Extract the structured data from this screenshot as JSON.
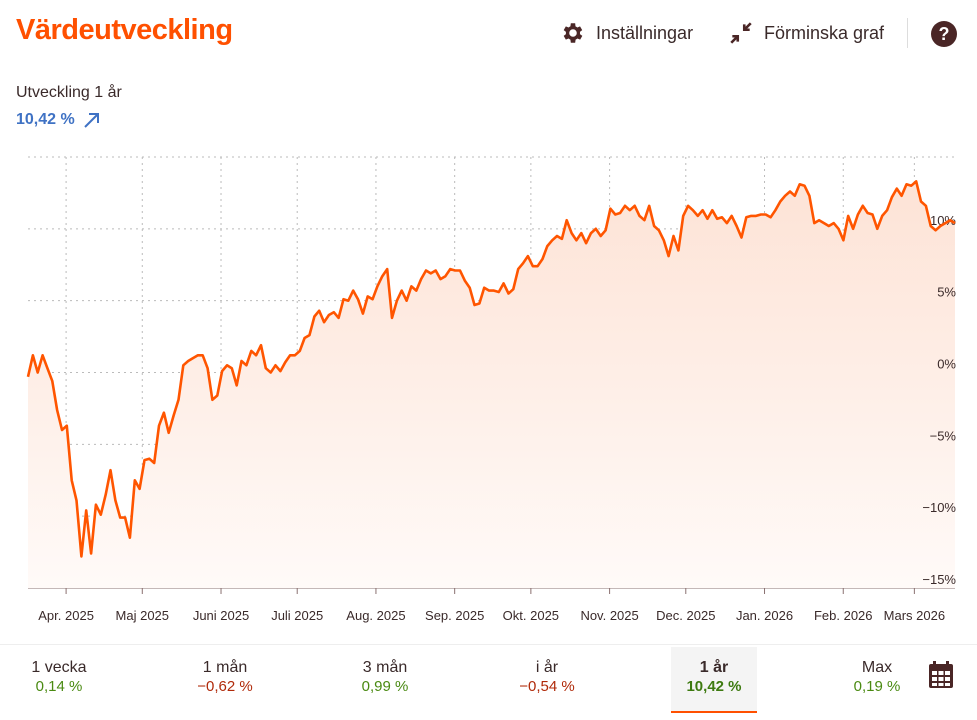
{
  "header": {
    "title": "Värdeutveckling",
    "settings_label": "Inställningar",
    "minimize_label": "Förminska graf",
    "help_label": "?"
  },
  "summary": {
    "label": "Utveckling 1 år",
    "value": "10,42 %",
    "trend_icon": "arrow-up-right-icon",
    "value_color": "#3f72c4"
  },
  "periods": [
    {
      "label": "1 vecka",
      "value": "0,14 %",
      "sign": "pos"
    },
    {
      "label": "1 mån",
      "value": "−0,62 %",
      "sign": "neg"
    },
    {
      "label": "3 mån",
      "value": "0,99 %",
      "sign": "pos"
    },
    {
      "label": "i år",
      "value": "−0,54 %",
      "sign": "neg"
    },
    {
      "label": "1 år",
      "value": "10,42 %",
      "sign": "pos",
      "active": true
    },
    {
      "label": "Max",
      "value": "0,19 %",
      "sign": "pos"
    }
  ],
  "colors": {
    "accent": "#ff5000",
    "line": "#ff5500",
    "positive": "#4a8a12",
    "negative": "#b02a0a"
  },
  "chart_data": {
    "type": "area",
    "x_range": [
      "2025-03-17",
      "2026-03-17"
    ],
    "ylim": [
      -15,
      15
    ],
    "grid": true,
    "y_ticks": [
      {
        "value": 10,
        "label": "10%"
      },
      {
        "value": 5,
        "label": "5%"
      },
      {
        "value": 0,
        "label": "0%"
      },
      {
        "value": -5,
        "label": "−5%"
      },
      {
        "value": -10,
        "label": "−10%"
      },
      {
        "value": -15,
        "label": "−15%"
      }
    ],
    "x_ticks": [
      {
        "date": "2025-04-01",
        "label": "Apr. 2025"
      },
      {
        "date": "2025-05-01",
        "label": "Maj 2025"
      },
      {
        "date": "2025-06-01",
        "label": "Juni 2025"
      },
      {
        "date": "2025-07-01",
        "label": "Juli 2025"
      },
      {
        "date": "2025-08-01",
        "label": "Aug. 2025"
      },
      {
        "date": "2025-09-01",
        "label": "Sep. 2025"
      },
      {
        "date": "2025-10-01",
        "label": "Okt. 2025"
      },
      {
        "date": "2025-11-01",
        "label": "Nov. 2025"
      },
      {
        "date": "2025-12-01",
        "label": "Dec. 2025"
      },
      {
        "date": "2026-01-01",
        "label": "Jan. 2026"
      },
      {
        "date": "2026-02-01",
        "label": "Feb. 2026"
      },
      {
        "date": "2026-03-01",
        "label": "Mars 2026"
      }
    ],
    "values": [
      -0.3,
      1.2,
      0,
      1.2,
      0.3,
      -0.6,
      -2.6,
      -4.0,
      -3.7,
      -7.5,
      -8.9,
      -12.8,
      -9.6,
      -12.6,
      -9.2,
      -9.9,
      -8.5,
      -6.8,
      -8.9,
      -10.1,
      -10.1,
      -11.5,
      -7.5,
      -8.1,
      -6.1,
      -6.0,
      -6.3,
      -3.7,
      -2.8,
      -4.2,
      -3.0,
      -1.9,
      0.5,
      0.8,
      1.0,
      1.2,
      1.2,
      0.3,
      -1.9,
      -1.6,
      0.1,
      0.5,
      0.3,
      -0.9,
      0.8,
      0.5,
      1.5,
      1.2,
      1.9,
      0.3,
      0,
      0.5,
      0.1,
      0.7,
      1.2,
      1.2,
      1.5,
      2.4,
      2.6,
      3.9,
      4.3,
      3.5,
      4.0,
      4.2,
      3.8,
      5.1,
      5.0,
      5.7,
      5.1,
      4.1,
      5.3,
      5.1,
      6.0,
      6.7,
      7.2,
      3.8,
      5.0,
      5.7,
      5.0,
      6.0,
      5.7,
      6.5,
      7.1,
      6.9,
      7.1,
      6.5,
      6.7,
      7.2,
      7.1,
      7.1,
      6.4,
      5.9,
      4.7,
      4.8,
      5.9,
      5.7,
      5.7,
      5.6,
      6.2,
      5.5,
      5.8,
      7.2,
      7.6,
      8.1,
      7.4,
      7.4,
      7.9,
      8.8,
      9.2,
      9.5,
      9.3,
      10.6,
      9.7,
      9.2,
      9.7,
      9.0,
      9.7,
      10.0,
      9.5,
      9.9,
      11.4,
      11.0,
      11.1,
      11.6,
      11.3,
      11.6,
      10.9,
      10.6,
      11.6,
      10.2,
      9.9,
      9.2,
      8.1,
      9.5,
      8.5,
      10.9,
      11.6,
      11.3,
      10.9,
      11.3,
      10.7,
      11.3,
      10.7,
      10.8,
      10.4,
      10.9,
      10.2,
      9.4,
      10.8,
      10.9,
      10.9,
      11.0,
      11.0,
      10.8,
      11.3,
      11.9,
      12.3,
      12.6,
      12.3,
      13.1,
      13.0,
      12.3,
      10.4,
      10.6,
      10.4,
      10.2,
      10.4,
      10.0,
      9.2,
      10.9,
      10.0,
      11.0,
      11.6,
      11.1,
      11.0,
      10.0,
      10.9,
      11.3,
      12.2,
      12.8,
      12.3,
      13.1,
      13.0,
      13.3,
      11.9,
      11.6,
      10.2,
      9.9,
      10.2,
      10.4,
      10.6,
      10.4
    ]
  }
}
